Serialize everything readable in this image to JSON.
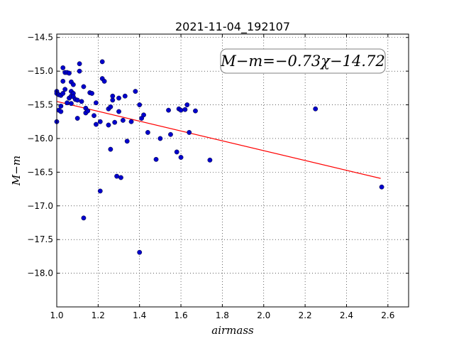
{
  "chart_data": {
    "type": "scatter",
    "title": "2021-11-04_192107",
    "xlabel": "airmass",
    "ylabel": "M−m",
    "annotation": "M−m=−0.73χ−14.72",
    "xlim": [
      1.0,
      2.7
    ],
    "ylim": [
      -18.5,
      -14.45
    ],
    "y_inverted": true,
    "grid": "dotted",
    "x_ticks": [
      "1.0",
      "1.2",
      "1.4",
      "1.6",
      "1.8",
      "2.0",
      "2.2",
      "2.4",
      "2.6"
    ],
    "x_tick_values": [
      1.0,
      1.2,
      1.4,
      1.6,
      1.8,
      2.0,
      2.2,
      2.4,
      2.6
    ],
    "y_ticks": [
      "−14.5",
      "−15.0",
      "−15.5",
      "−16.0",
      "−16.5",
      "−17.0",
      "−17.5",
      "−18.0"
    ],
    "y_tick_values": [
      -14.5,
      -15.0,
      -15.5,
      -16.0,
      -16.5,
      -17.0,
      -17.5,
      -18.0
    ],
    "point_color": "#0000cc",
    "fit_color": "#ff0000",
    "fit": {
      "slope": -0.73,
      "intercept": -14.72,
      "x_range": [
        1.0,
        2.565
      ]
    },
    "points": [
      [
        1.0,
        -15.3
      ],
      [
        1.0,
        -15.33
      ],
      [
        1.0,
        -15.75
      ],
      [
        1.01,
        -15.58
      ],
      [
        1.01,
        -15.35
      ],
      [
        1.02,
        -15.6
      ],
      [
        1.02,
        -15.52
      ],
      [
        1.02,
        -15.36
      ],
      [
        1.03,
        -14.95
      ],
      [
        1.03,
        -15.15
      ],
      [
        1.03,
        -15.33
      ],
      [
        1.04,
        -15.02
      ],
      [
        1.04,
        -15.27
      ],
      [
        1.05,
        -15.02
      ],
      [
        1.05,
        -15.47
      ],
      [
        1.06,
        -15.03
      ],
      [
        1.06,
        -15.4
      ],
      [
        1.07,
        -15.3
      ],
      [
        1.07,
        -15.48
      ],
      [
        1.07,
        -15.16
      ],
      [
        1.07,
        -15.37
      ],
      [
        1.08,
        -15.2
      ],
      [
        1.08,
        -15.33
      ],
      [
        1.08,
        -15.38
      ],
      [
        1.09,
        -15.42
      ],
      [
        1.1,
        -15.7
      ],
      [
        1.1,
        -15.43
      ],
      [
        1.11,
        -14.89
      ],
      [
        1.11,
        -15.0
      ],
      [
        1.12,
        -15.45
      ],
      [
        1.13,
        -15.23
      ],
      [
        1.13,
        -17.18
      ],
      [
        1.14,
        -15.55
      ],
      [
        1.14,
        -15.62
      ],
      [
        1.15,
        -15.59
      ],
      [
        1.16,
        -15.32
      ],
      [
        1.17,
        -15.33
      ],
      [
        1.18,
        -15.66
      ],
      [
        1.19,
        -15.79
      ],
      [
        1.19,
        -15.47
      ],
      [
        1.21,
        -16.78
      ],
      [
        1.21,
        -15.75
      ],
      [
        1.22,
        -15.11
      ],
      [
        1.22,
        -14.86
      ],
      [
        1.23,
        -15.15
      ],
      [
        1.25,
        -15.8
      ],
      [
        1.25,
        -15.56
      ],
      [
        1.26,
        -15.53
      ],
      [
        1.26,
        -16.16
      ],
      [
        1.27,
        -15.43
      ],
      [
        1.27,
        -15.37
      ],
      [
        1.28,
        -15.76
      ],
      [
        1.29,
        -16.56
      ],
      [
        1.3,
        -15.4
      ],
      [
        1.3,
        -15.6
      ],
      [
        1.31,
        -16.58
      ],
      [
        1.32,
        -15.73
      ],
      [
        1.33,
        -15.37
      ],
      [
        1.34,
        -16.04
      ],
      [
        1.36,
        -15.75
      ],
      [
        1.38,
        -15.3
      ],
      [
        1.4,
        -17.69
      ],
      [
        1.4,
        -15.5
      ],
      [
        1.41,
        -15.7
      ],
      [
        1.42,
        -15.65
      ],
      [
        1.44,
        -15.91
      ],
      [
        1.48,
        -16.31
      ],
      [
        1.5,
        -16.0
      ],
      [
        1.54,
        -15.58
      ],
      [
        1.55,
        -15.94
      ],
      [
        1.58,
        -16.2
      ],
      [
        1.59,
        -15.56
      ],
      [
        1.6,
        -16.28
      ],
      [
        1.6,
        -15.58
      ],
      [
        1.62,
        -15.57
      ],
      [
        1.63,
        -15.5
      ],
      [
        1.64,
        -15.91
      ],
      [
        1.67,
        -15.59
      ],
      [
        1.74,
        -16.32
      ],
      [
        2.25,
        -15.56
      ],
      [
        2.57,
        -16.72
      ]
    ]
  }
}
